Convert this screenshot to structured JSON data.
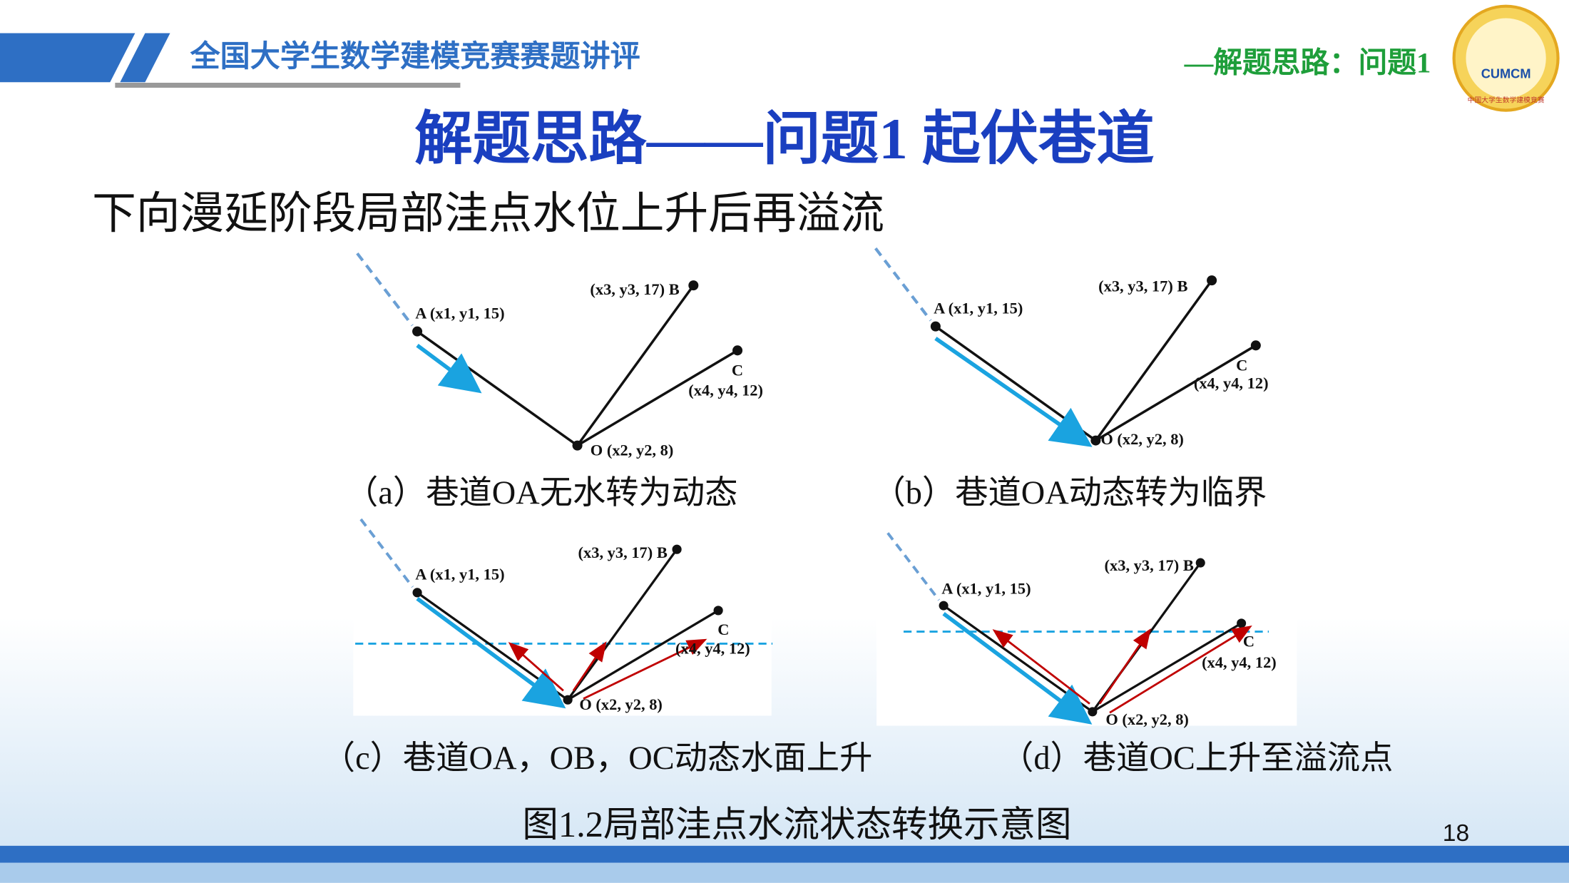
{
  "header": {
    "title": "全国大学生数学建模竞赛赛题讲评",
    "section": "—解题思路：问题1",
    "logo_text": "CUMCM",
    "logo_ring": "中国大学生数学建模竞赛"
  },
  "title": "解题思路——问题1  起伏巷道",
  "subtitle": "下向漫延阶段局部洼点水位上升后再溢流",
  "diagrams": [
    {
      "label_a": "A (x1, y1, 15)",
      "label_b": "(x3, y3, 17) B",
      "label_c": "C",
      "coord_c": "(x4, y4, 12)",
      "label_o": "O (x2, y2, 8)",
      "caption": "（a）巷道OA无水转为动态"
    },
    {
      "label_a": "A (x1, y1, 15)",
      "label_b": "(x3, y3, 17) B",
      "label_c": "C",
      "coord_c": "(x4, y4, 12)",
      "label_o": "O (x2, y2, 8)",
      "caption": "（b）巷道OA动态转为临界"
    },
    {
      "label_a": "A (x1, y1, 15)",
      "label_b": "(x3, y3, 17) B",
      "label_c": "C",
      "coord_c": "(x4, y4, 12)",
      "label_o": "O (x2, y2, 8)",
      "caption": "（c）巷道OA，OB，OC动态水面上升"
    },
    {
      "label_a": "A (x1, y1, 15)",
      "label_b": "(x3, y3, 17) B",
      "label_c": "C",
      "coord_c": "(x4, y4, 12)",
      "label_o": "O (x2, y2, 8)",
      "caption": "（d）巷道OC上升至溢流点"
    }
  ],
  "figure_caption": "图1.2局部洼点水流状态转换示意图",
  "page_number": "18"
}
